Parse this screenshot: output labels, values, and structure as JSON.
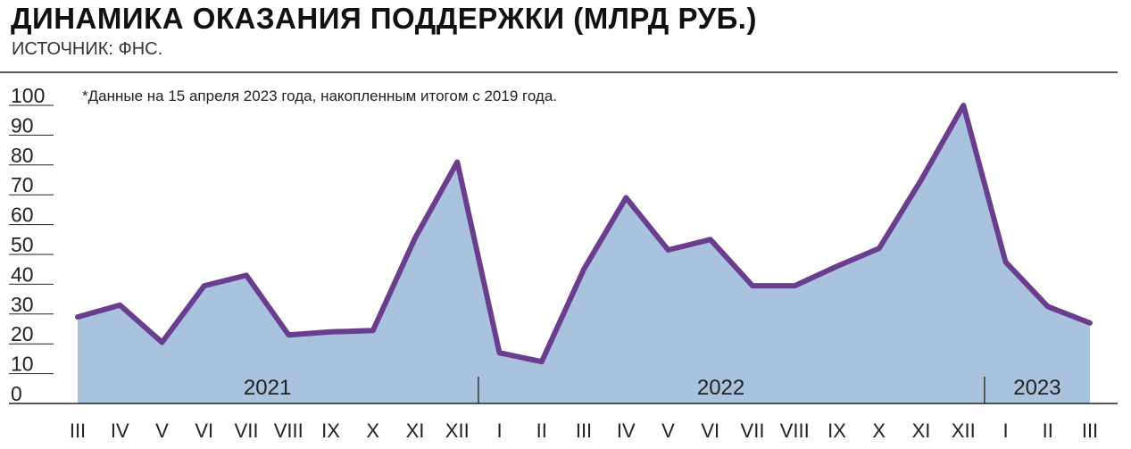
{
  "header": {
    "title": "ДИНАМИКА ОКАЗАНИЯ ПОДДЕРЖКИ (МЛРД РУБ.)",
    "source": "ИСТОЧНИК: ФНС."
  },
  "chart_data": {
    "type": "area",
    "title": "ДИНАМИКА ОКАЗАНИЯ ПОДДЕРЖКИ (МЛРД РУБ.)",
    "note": "*Данные на 15 апреля 2023 года, накопленным итогом с 2019 года.",
    "ylim": [
      0,
      100
    ],
    "yticks": [
      "0",
      "10",
      "20",
      "30",
      "40",
      "50",
      "60",
      "70",
      "80",
      "90",
      "100"
    ],
    "categories": [
      "III",
      "IV",
      "V",
      "VI",
      "VII",
      "VIII",
      "IX",
      "X",
      "XI",
      "XII",
      "I",
      "II",
      "III",
      "IV",
      "V",
      "VI",
      "VII",
      "VIII",
      "IX",
      "X",
      "XI",
      "XII",
      "I",
      "II",
      "III"
    ],
    "years": [
      {
        "label": "2021",
        "start": 0,
        "end": 9
      },
      {
        "label": "2022",
        "start": 10,
        "end": 21
      },
      {
        "label": "2023",
        "start": 22,
        "end": 24
      }
    ],
    "values": [
      29,
      33,
      20.5,
      39.5,
      43,
      23,
      24,
      24.5,
      55.5,
      81,
      17,
      14,
      45,
      69,
      51.5,
      55,
      39.5,
      39.5,
      46,
      52,
      75,
      100,
      47.5,
      32.5,
      27
    ],
    "colors": {
      "line": "#6a3d8f",
      "fill": "#a9c3de"
    }
  }
}
